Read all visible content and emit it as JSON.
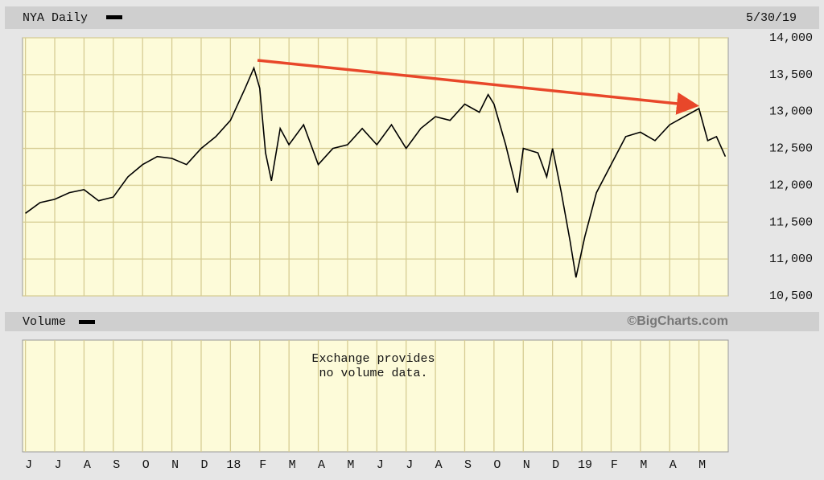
{
  "chart_data": {
    "type": "line",
    "title": "NYA Daily",
    "subtitle": "5/30/19",
    "volume_title": "Volume",
    "credit": "©BigCharts.com",
    "annotation": [
      "Exchange provides",
      "no volume data."
    ],
    "x": [
      0,
      0.5,
      1,
      1.5,
      2,
      2.5,
      3,
      3.5,
      4,
      4.5,
      5,
      5.5,
      6,
      6.5,
      7,
      7.5,
      7.8,
      8,
      8.2,
      8.4,
      8.7,
      9,
      9.5,
      10,
      10.5,
      11,
      11.5,
      12,
      12.5,
      13,
      13.5,
      14,
      14.5,
      15,
      15.5,
      15.8,
      16,
      16.4,
      16.8,
      17,
      17.5,
      17.8,
      18,
      18.3,
      18.6,
      18.8,
      19.1,
      19.5,
      20,
      20.5,
      21,
      21.5,
      22,
      22.5,
      23,
      23.3,
      23.6,
      23.9
    ],
    "values": [
      11620,
      11765,
      11810,
      11900,
      11940,
      11790,
      11840,
      12115,
      12280,
      12390,
      12365,
      12280,
      12500,
      12660,
      12880,
      13315,
      13590,
      13315,
      12440,
      12060,
      12770,
      12550,
      12820,
      12280,
      12500,
      12550,
      12770,
      12550,
      12820,
      12500,
      12770,
      12930,
      12880,
      13100,
      12990,
      13230,
      13100,
      12550,
      11900,
      12500,
      12440,
      12115,
      12500,
      11900,
      11240,
      10750,
      11300,
      11900,
      12280,
      12660,
      12720,
      12605,
      12820,
      12930,
      13040,
      12605,
      12660,
      12390
    ],
    "color": "#000000",
    "xlim": [
      -0.1,
      24
    ],
    "xticks": [
      {
        "value": 0,
        "label": "J"
      },
      {
        "value": 1,
        "label": "J"
      },
      {
        "value": 2,
        "label": "A"
      },
      {
        "value": 3,
        "label": "S"
      },
      {
        "value": 4,
        "label": "O"
      },
      {
        "value": 5,
        "label": "N"
      },
      {
        "value": 6,
        "label": "D"
      },
      {
        "value": 7,
        "label": "18"
      },
      {
        "value": 8,
        "label": "F"
      },
      {
        "value": 9,
        "label": "M"
      },
      {
        "value": 10,
        "label": "A"
      },
      {
        "value": 11,
        "label": "M"
      },
      {
        "value": 12,
        "label": "J"
      },
      {
        "value": 13,
        "label": "J"
      },
      {
        "value": 14,
        "label": "A"
      },
      {
        "value": 15,
        "label": "S"
      },
      {
        "value": 16,
        "label": "O"
      },
      {
        "value": 17,
        "label": "N"
      },
      {
        "value": 18,
        "label": "D"
      },
      {
        "value": 19,
        "label": "19"
      },
      {
        "value": 20,
        "label": "F"
      },
      {
        "value": 21,
        "label": "M"
      },
      {
        "value": 22,
        "label": "A"
      },
      {
        "value": 23,
        "label": "M"
      }
    ],
    "ylim": [
      10500,
      14000
    ],
    "yticks": [
      {
        "value": 10500,
        "label": "10,500"
      },
      {
        "value": 11000,
        "label": "11,000"
      },
      {
        "value": 11500,
        "label": "11,500"
      },
      {
        "value": 12000,
        "label": "12,000"
      },
      {
        "value": 12500,
        "label": "12,500"
      },
      {
        "value": 13000,
        "label": "13,000"
      },
      {
        "value": 13500,
        "label": "13,500"
      },
      {
        "value": 14000,
        "label": "14,000"
      }
    ],
    "grid": true
  }
}
